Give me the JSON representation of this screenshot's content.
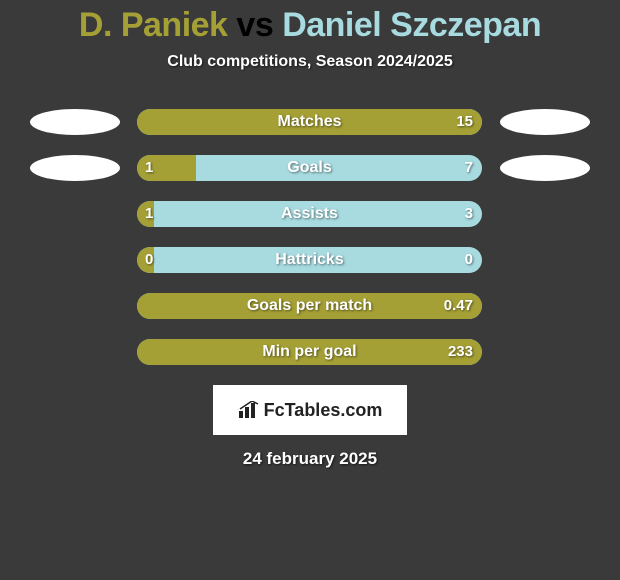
{
  "header": {
    "player1": "D. Paniek",
    "vs": " vs ",
    "player2": "Daniel Szczepan",
    "player1_color": "#a5a035",
    "player2_color": "#a7dbe0",
    "subtitle": "Club competitions, Season 2024/2025"
  },
  "chart": {
    "type": "horizontal-comparison-bars",
    "bar_bg_color": "#a7dbe0",
    "bar_fill_color": "#a5a035",
    "background_color": "#3a3a3a",
    "text_color": "#ffffff",
    "rows": [
      {
        "label": "Matches",
        "left": "",
        "right": "15",
        "fill_pct": 100,
        "show_left_val": false
      },
      {
        "label": "Goals",
        "left": "1",
        "right": "7",
        "fill_pct": 17,
        "show_left_val": true
      },
      {
        "label": "Assists",
        "left": "1",
        "right": "3",
        "fill_pct": 5,
        "show_left_val": true
      },
      {
        "label": "Hattricks",
        "left": "0",
        "right": "0",
        "fill_pct": 5,
        "show_left_val": true
      },
      {
        "label": "Goals per match",
        "left": "",
        "right": "0.47",
        "fill_pct": 100,
        "show_left_val": false
      },
      {
        "label": "Min per goal",
        "left": "",
        "right": "233",
        "fill_pct": 100,
        "show_left_val": false
      }
    ],
    "ovals": [
      {
        "row": 0,
        "side": "left"
      },
      {
        "row": 0,
        "side": "right"
      },
      {
        "row": 1,
        "side": "left"
      },
      {
        "row": 1,
        "side": "right"
      }
    ]
  },
  "footer": {
    "logo_text": "FcTables.com",
    "date": "24 february 2025"
  }
}
